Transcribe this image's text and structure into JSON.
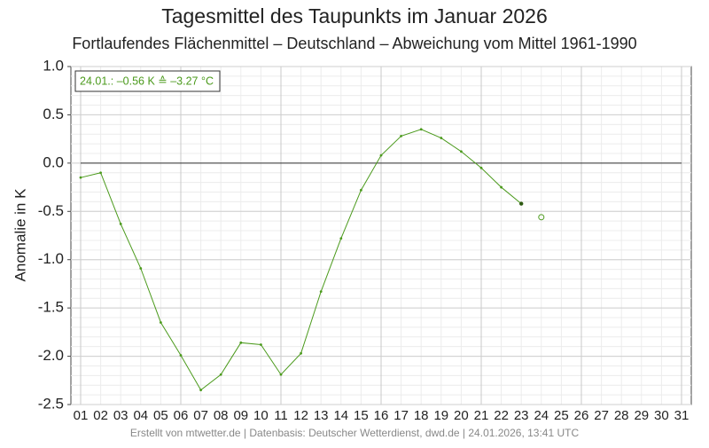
{
  "chart_data": {
    "type": "line",
    "title": "Tagesmittel des Taupunkts im Januar 2026",
    "subtitle": "Fortlaufendes Flächenmittel – Deutschland – Abweichung vom Mittel 1961-1990",
    "y_label": "Anomalie in K",
    "annotation": "24.01.: –0.56 K ≙ –3.27 °C",
    "footer": "Erstellt von mtwetter.de | Datenbasis: Deutscher Wetterdienst, dwd.de | 24.01.2026, 13:41 UTC",
    "categories": [
      "01",
      "02",
      "03",
      "04",
      "05",
      "06",
      "07",
      "08",
      "09",
      "10",
      "11",
      "12",
      "13",
      "14",
      "15",
      "16",
      "17",
      "18",
      "19",
      "20",
      "21",
      "22",
      "23",
      "24",
      "25",
      "26",
      "27",
      "28",
      "29",
      "30",
      "31"
    ],
    "series": [
      {
        "color": "#4b9a1c",
        "values": [
          -0.15,
          -0.1,
          -0.63,
          -1.09,
          -1.65,
          -1.99,
          -2.35,
          -2.19,
          -1.86,
          -1.88,
          -2.19,
          -1.97,
          -1.33,
          -0.78,
          -0.28,
          0.08,
          0.28,
          0.35,
          0.26,
          0.12,
          -0.05,
          -0.25,
          -0.42,
          null,
          null,
          null,
          null,
          null,
          null,
          null,
          null
        ]
      },
      {
        "color": "#4b9a1c",
        "values": [
          null,
          null,
          null,
          null,
          null,
          null,
          null,
          null,
          null,
          null,
          null,
          null,
          null,
          null,
          null,
          null,
          null,
          null,
          null,
          null,
          null,
          null,
          null,
          -0.56,
          null,
          null,
          null,
          null,
          null,
          null,
          null
        ]
      }
    ],
    "ylim": [
      -2.5,
      1.0
    ],
    "yticks": [
      {
        "value": 1.0,
        "label": "1.0"
      },
      0.5,
      {
        "value": 0.0,
        "label": "0.0"
      },
      -0.5,
      {
        "value": -1.0,
        "label": "-1.0"
      },
      -1.5,
      {
        "value": -2.0,
        "label": "-2.0"
      },
      -2.5
    ],
    "grid": true
  }
}
